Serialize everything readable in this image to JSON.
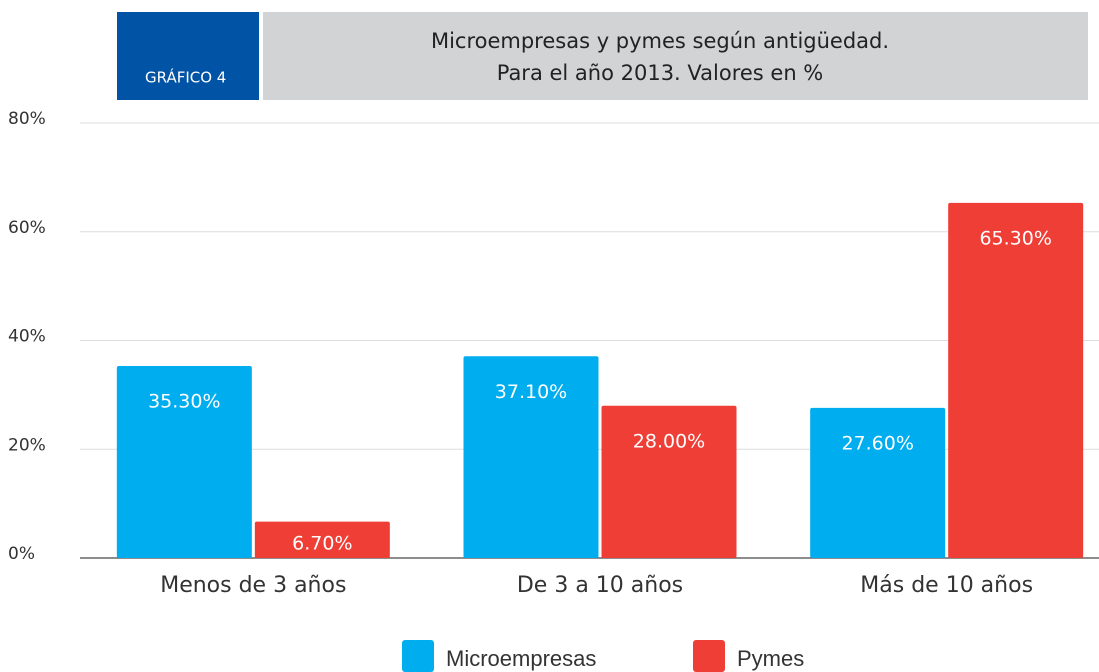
{
  "chart_data": {
    "type": "bar",
    "label": "GRÁFICO 4",
    "title": "Microempresas y pymes según antigüedad.",
    "subtitle": "Para el año 2013. Valores en %",
    "categories": [
      "Menos de 3 años",
      "De 3 a 10 años",
      "Más de 10 años"
    ],
    "series": [
      {
        "name": "Microempresas",
        "color": "#00adee",
        "values": [
          35.3,
          37.1,
          27.6
        ],
        "value_labels": [
          "35.30%",
          "37.10%",
          "27.60%"
        ]
      },
      {
        "name": "Pymes",
        "color": "#ef3e36",
        "values": [
          6.7,
          28.0,
          65.3
        ],
        "value_labels": [
          "6.70%",
          "28.00%",
          "65.30%"
        ]
      }
    ],
    "ylim": [
      0,
      80
    ],
    "yticks": [
      {
        "value": 0,
        "label": "0%"
      },
      {
        "value": 20,
        "label": "20%"
      },
      {
        "value": 40,
        "label": "40%"
      },
      {
        "value": 60,
        "label": "60%"
      },
      {
        "value": 80,
        "label": "80%"
      }
    ],
    "grid": true,
    "legend": "bottom"
  }
}
